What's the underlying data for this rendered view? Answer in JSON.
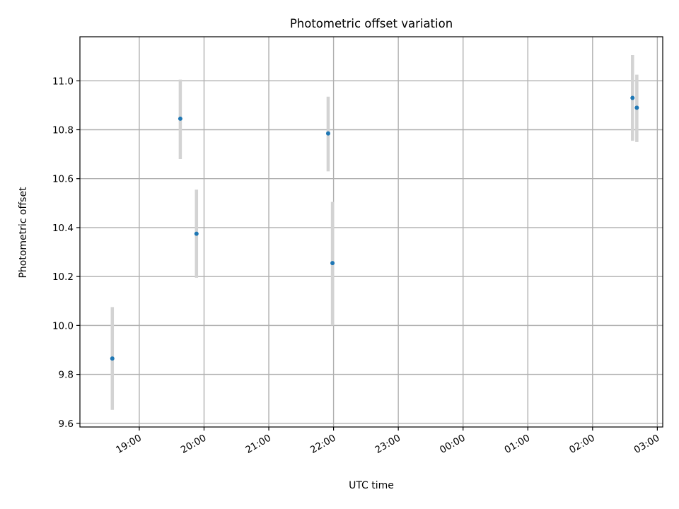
{
  "chart_data": {
    "type": "scatter",
    "title": "Photometric offset variation",
    "xlabel": "UTC time",
    "ylabel": "Photometric offset",
    "x_tick_labels": [
      "19:00",
      "20:00",
      "21:00",
      "22:00",
      "23:00",
      "00:00",
      "01:00",
      "02:00",
      "03:00"
    ],
    "y_tick_labels": [
      "9.6",
      "9.8",
      "10.0",
      "10.2",
      "10.4",
      "10.6",
      "10.8",
      "11.0"
    ],
    "xlim": [
      "18:05",
      "03:05"
    ],
    "ylim": [
      9.585,
      11.18
    ],
    "grid": true,
    "points": [
      {
        "x": "18:35",
        "y": 9.865,
        "yerr_low": 9.655,
        "yerr_high": 10.075
      },
      {
        "x": "19:38",
        "y": 10.845,
        "yerr_low": 10.68,
        "yerr_high": 11.005
      },
      {
        "x": "19:53",
        "y": 10.375,
        "yerr_low": 10.195,
        "yerr_high": 10.555
      },
      {
        "x": "21:55",
        "y": 10.785,
        "yerr_low": 10.63,
        "yerr_high": 10.935
      },
      {
        "x": "21:59",
        "y": 10.255,
        "yerr_low": 10.0,
        "yerr_high": 10.505
      },
      {
        "x": "02:37",
        "y": 10.93,
        "yerr_low": 10.755,
        "yerr_high": 11.105
      },
      {
        "x": "02:41",
        "y": 10.89,
        "yerr_low": 10.75,
        "yerr_high": 11.025
      }
    ],
    "colors": {
      "point": "#1f77b4",
      "errorbar": "#d3d3d3",
      "grid": "#b0b0b0",
      "axis": "#000000"
    }
  }
}
